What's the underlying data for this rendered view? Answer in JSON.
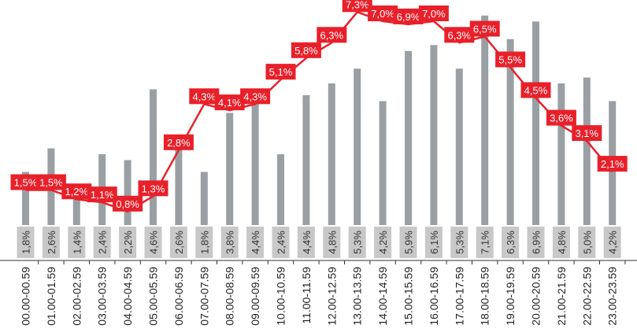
{
  "chart_data": {
    "type": "bar",
    "categories": [
      "00.00-00.59",
      "01.00-01.59",
      "02.00-02.59",
      "03.00-03.59",
      "04.00-04.59",
      "05.00-05.59",
      "06.00-06.59",
      "07.00-07.59",
      "08.00-08.59",
      "09.00-09.59",
      "10.00-10.59",
      "11.00-11.59",
      "12.00-12.59",
      "13.00-13.59",
      "14.00-14.59",
      "15.00-15.59",
      "16.00-16.59",
      "17.00-17.59",
      "18.00-18.59",
      "19.00-19.59",
      "20.00-20.59",
      "21.00-21.59",
      "22.00-22.59",
      "23.00-23.59"
    ],
    "series": [
      {
        "type": "bar",
        "color": "#9a9fa3",
        "values": [
          1.8,
          2.6,
          1.4,
          2.4,
          2.2,
          4.6,
          2.6,
          1.8,
          3.8,
          4.4,
          2.4,
          4.4,
          4.8,
          5.3,
          4.2,
          5.9,
          6.1,
          5.3,
          7.1,
          6.3,
          6.9,
          4.8,
          5.0,
          4.2
        ],
        "labels": [
          "1,8%",
          "2,6%",
          "1,4%",
          "2,4%",
          "2,2%",
          "4,6%",
          "2,6%",
          "1,8%",
          "3,8%",
          "4,4%",
          "2,4%",
          "4,4%",
          "4,8%",
          "5,3%",
          "4,2%",
          "5,9%",
          "6,1%",
          "5,3%",
          "7,1%",
          "6,3%",
          "6,9%",
          "4,8%",
          "5,0%",
          "4,2%"
        ]
      },
      {
        "type": "line",
        "color": "#e8202a",
        "values": [
          1.5,
          1.5,
          1.2,
          1.1,
          0.8,
          1.3,
          2.8,
          4.3,
          4.1,
          4.3,
          5.1,
          5.8,
          6.3,
          7.3,
          7.0,
          6.9,
          7.0,
          6.3,
          6.5,
          5.5,
          4.5,
          3.6,
          3.1,
          2.1
        ],
        "labels": [
          "1,5%",
          "1,5%",
          "1,2%",
          "1,1%",
          "0,8%",
          "1,3%",
          "2,8%",
          "4,3%",
          "4,1%",
          "4,3%",
          "5,1%",
          "5,8%",
          "6,3%",
          "7,3%",
          "7,0%",
          "6,9%",
          "7,0%",
          "6,3%",
          "6,5%",
          "5,5%",
          "4,5%",
          "3,6%",
          "3,1%",
          "2,1%"
        ]
      }
    ],
    "title": "",
    "xlabel": "",
    "ylabel": "",
    "grid": false,
    "legend": "none",
    "axis_color": "#333333",
    "label_box_color": "#c8c8c8"
  }
}
